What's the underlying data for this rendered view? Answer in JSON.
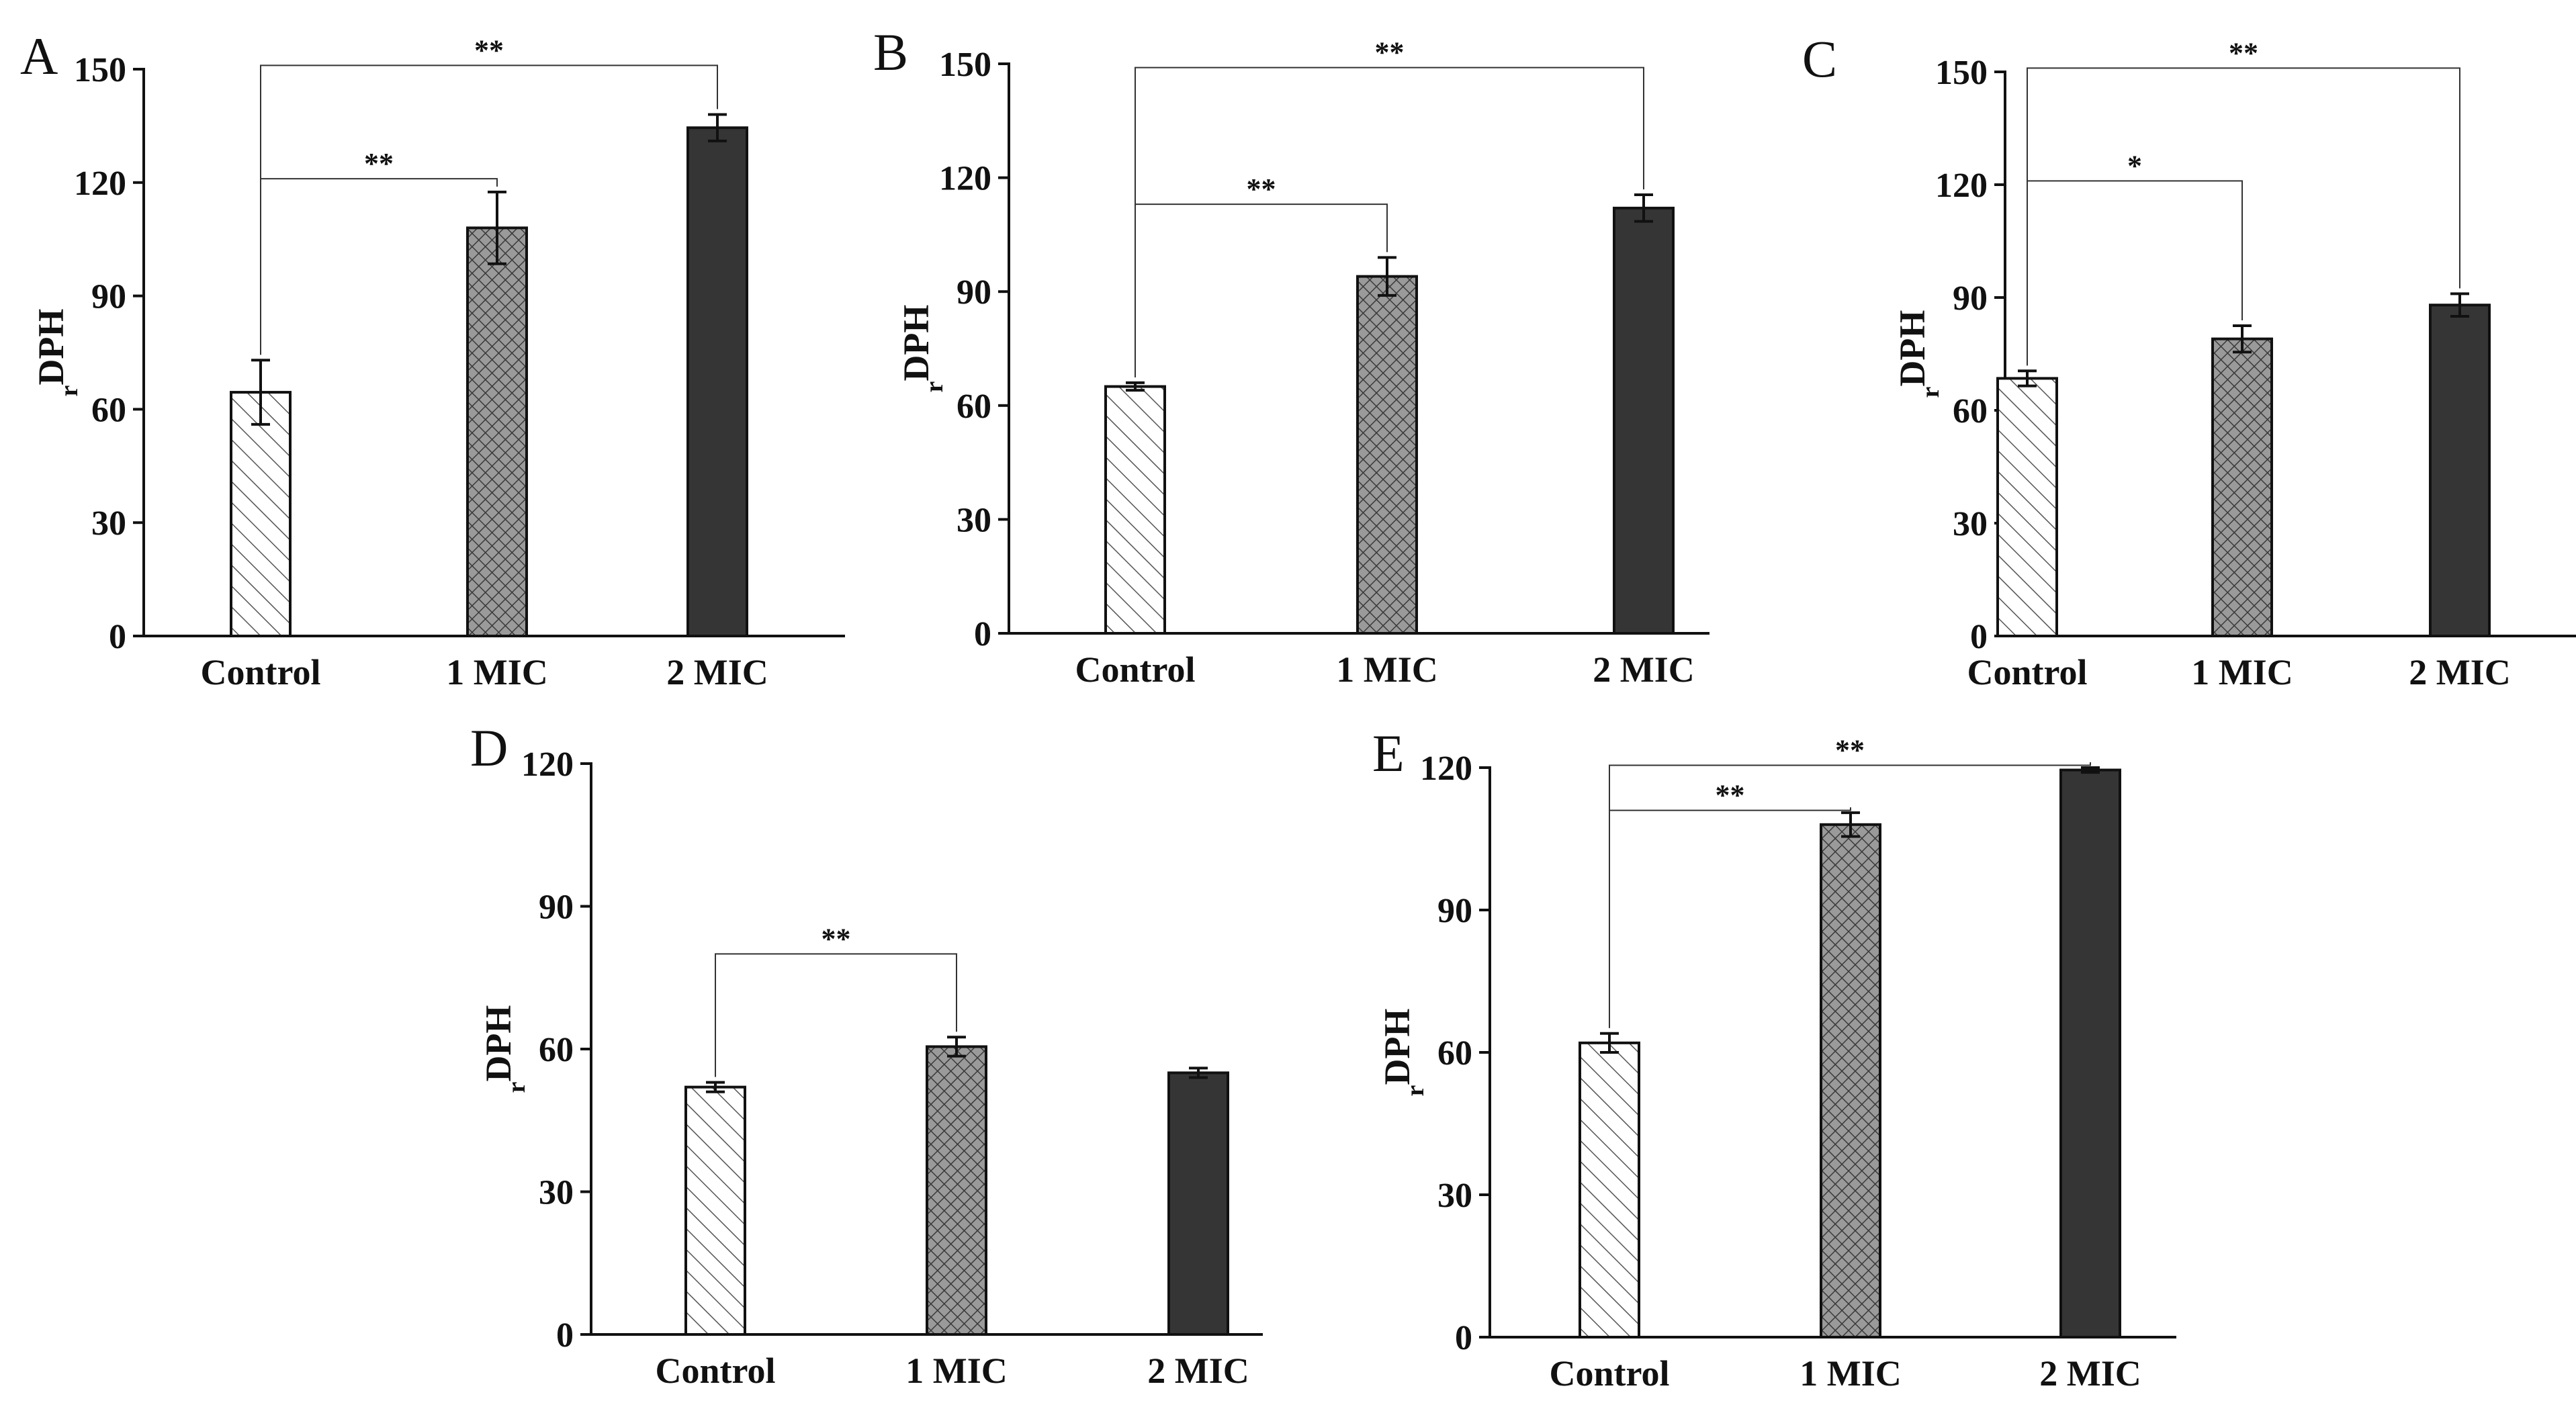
{
  "chart_data": [
    {
      "panel": "A",
      "type": "bar",
      "categories": [
        "Control",
        "1 MIC",
        "2 MIC"
      ],
      "values": [
        64.5,
        108,
        134.5
      ],
      "errors": [
        8.5,
        9.5,
        3.5
      ],
      "ylabel_main": "DPH",
      "ylabel_prefix": "r",
      "ylim": [
        0,
        150
      ],
      "yticks": [
        "0",
        "30",
        "60",
        "90",
        "120",
        "150"
      ],
      "significance": [
        {
          "from": 0,
          "to": 1,
          "label": "**",
          "level": 121
        },
        {
          "from": 0,
          "to": 2,
          "label": "**",
          "level": 151
        }
      ]
    },
    {
      "panel": "B",
      "type": "bar",
      "categories": [
        "Control",
        "1 MIC",
        "2 MIC"
      ],
      "values": [
        65,
        94,
        112
      ],
      "errors": [
        1,
        5,
        3.5
      ],
      "ylabel_main": "DPH",
      "ylabel_prefix": "r",
      "ylim": [
        0,
        150
      ],
      "yticks": [
        "0",
        "30",
        "60",
        "90",
        "120",
        "150"
      ],
      "significance": [
        {
          "from": 0,
          "to": 1,
          "label": "**",
          "level": 113
        },
        {
          "from": 0,
          "to": 2,
          "label": "**",
          "level": 149
        }
      ]
    },
    {
      "panel": "C",
      "type": "bar",
      "categories": [
        "Control",
        "1 MIC",
        "2 MIC"
      ],
      "values": [
        68.5,
        79,
        88
      ],
      "errors": [
        2,
        3.5,
        3
      ],
      "ylabel_main": "DPH",
      "ylabel_prefix": "r",
      "ylim": [
        0,
        150
      ],
      "yticks": [
        "0",
        "30",
        "60",
        "90",
        "120",
        "150"
      ],
      "significance": [
        {
          "from": 0,
          "to": 1,
          "label": "*",
          "level": 121
        },
        {
          "from": 0,
          "to": 2,
          "label": "**",
          "level": 151
        }
      ]
    },
    {
      "panel": "D",
      "type": "bar",
      "categories": [
        "Control",
        "1 MIC",
        "2 MIC"
      ],
      "values": [
        52,
        60.5,
        55
      ],
      "errors": [
        1,
        2,
        1
      ],
      "ylabel_main": "DPH",
      "ylabel_prefix": "r",
      "ylim": [
        0,
        120
      ],
      "yticks": [
        "0",
        "30",
        "60",
        "90",
        "120"
      ],
      "significance": [
        {
          "from": 0,
          "to": 1,
          "label": "**",
          "level": 80
        }
      ]
    },
    {
      "panel": "E",
      "type": "bar",
      "categories": [
        "Control",
        "1 MIC",
        "2 MIC"
      ],
      "values": [
        62,
        108,
        119.5
      ],
      "errors": [
        2,
        2.5,
        0.5
      ],
      "ylabel_main": "DPH",
      "ylabel_prefix": "r",
      "ylim": [
        0,
        120
      ],
      "yticks": [
        "0",
        "30",
        "60",
        "90",
        "120"
      ],
      "significance": [
        {
          "from": 0,
          "to": 1,
          "label": "**",
          "level": 111
        },
        {
          "from": 0,
          "to": 2,
          "label": "**",
          "level": 120.5
        }
      ]
    }
  ]
}
